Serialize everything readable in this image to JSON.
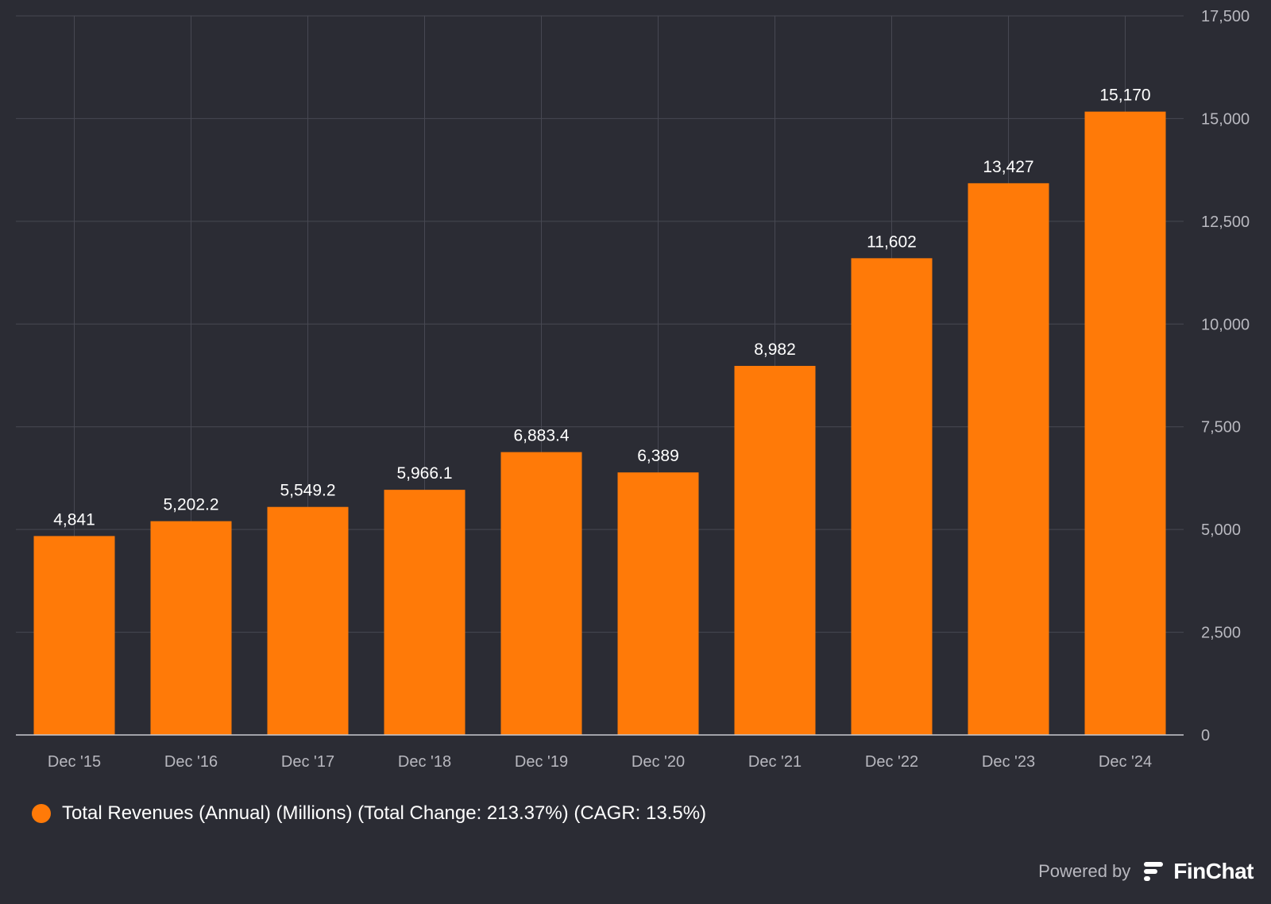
{
  "chart_data": {
    "type": "bar",
    "categories": [
      "Dec '15",
      "Dec '16",
      "Dec '17",
      "Dec '18",
      "Dec '19",
      "Dec '20",
      "Dec '21",
      "Dec '22",
      "Dec '23",
      "Dec '24"
    ],
    "series": [
      {
        "name": "Total Revenues (Annual) (Millions) (Total Change: 213.37%) (CAGR: 13.5%)",
        "values": [
          4841,
          5202.2,
          5549.2,
          5966.1,
          6883.4,
          6389,
          8982,
          11602,
          13427,
          15170
        ],
        "value_labels": [
          "4,841",
          "5,202.2",
          "5,549.2",
          "5,966.1",
          "6,883.4",
          "6,389",
          "8,982",
          "11,602",
          "13,427",
          "15,170"
        ],
        "color": "#ff7a08"
      }
    ],
    "ylim": [
      0,
      17500
    ],
    "yticks": [
      0,
      2500,
      5000,
      7500,
      10000,
      12500,
      15000,
      17500
    ],
    "ytick_labels": [
      "0",
      "2,500",
      "5,000",
      "7,500",
      "10,000",
      "12,500",
      "15,000",
      "17,500"
    ],
    "y_axis_side": "right",
    "grid": true,
    "legend_position": "bottom-left"
  },
  "legend": {
    "label": "Total Revenues (Annual) (Millions) (Total Change: 213.37%) (CAGR: 13.5%)",
    "color": "#ff7a08"
  },
  "footer": {
    "powered_by": "Powered by",
    "brand": "FinChat"
  },
  "colors": {
    "background": "#2b2c34",
    "grid": "#474852",
    "axis_text": "#b8b8bf",
    "label_text": "#ffffff"
  }
}
